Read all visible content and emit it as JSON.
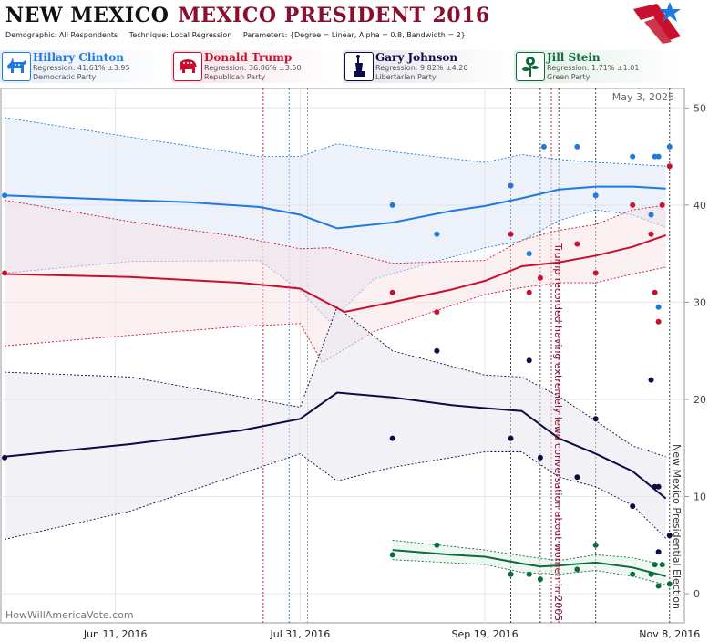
{
  "header": {
    "state": "NEW MEXICO",
    "race": "MEXICO PRESIDENT 2016",
    "demographic": "Demographic: All Respondents",
    "technique": "Technique: Local Regression",
    "parameters": "Parameters: {Degree = Linear, Alpha = 0.8, Bandwidth = 2}"
  },
  "candidates": [
    {
      "name": "Hillary Clinton",
      "regression": "Regression: 41.61% ±3.95",
      "party": "Democratic Party",
      "color": "#1f7ae0",
      "icon": "donkey-icon"
    },
    {
      "name": "Donald Trump",
      "regression": "Regression: 36.86% ±3.50",
      "party": "Republican Party",
      "color": "#c8102e",
      "icon": "elephant-icon"
    },
    {
      "name": "Gary Johnson",
      "regression": "Regression: 9.82% ±4.20",
      "party": "Libertarian Party",
      "color": "#0b0b45",
      "icon": "liberty-statue-icon"
    },
    {
      "name": "Jill Stein",
      "regression": "Regression: 1.71% ±1.01",
      "party": "Green Party",
      "color": "#0a6b3b",
      "icon": "flower-icon"
    }
  ],
  "chart_data": {
    "type": "line",
    "date_label": "May 3, 2025",
    "watermark": "HowWillAmericaVote.com",
    "xlim": [
      "2016-05-11",
      "2016-11-12"
    ],
    "ylim": [
      -3,
      52
    ],
    "y_ticks": [
      0,
      10,
      20,
      30,
      40,
      50
    ],
    "x_ticks": [
      {
        "date": "2016-06-11",
        "label": "Jun 11, 2016"
      },
      {
        "date": "2016-07-31",
        "label": "Jul 31, 2016"
      },
      {
        "date": "2016-09-19",
        "label": "Sep 19, 2016"
      },
      {
        "date": "2016-11-08",
        "label": "Nov 8, 2016"
      }
    ],
    "annotations": [
      {
        "date": "2016-10-07",
        "text": "Trump recorded having extremely lewd conversation about women in 2005",
        "color": "#8a0e2e"
      },
      {
        "date": "2016-11-08",
        "text": "New Mexico Presidential Election",
        "color": "#333333"
      }
    ],
    "event_lines": [
      {
        "date": "2016-07-21",
        "color": "#c8102e"
      },
      {
        "date": "2016-07-28",
        "color": "#1f7ae0"
      },
      {
        "date": "2016-08-02",
        "color": "#999999"
      },
      {
        "date": "2016-09-26",
        "color": "#333333"
      },
      {
        "date": "2016-10-04",
        "color": "#333333"
      },
      {
        "date": "2016-10-07",
        "color": "#c8102e"
      },
      {
        "date": "2016-10-09",
        "color": "#333333"
      },
      {
        "date": "2016-10-19",
        "color": "#333333"
      },
      {
        "date": "2016-11-08",
        "color": "#333333"
      }
    ],
    "series": [
      {
        "name": "Hillary Clinton",
        "color": "#1f7ae0",
        "band_color": "#dde6f5",
        "trend": [
          [
            "2016-05-12",
            41
          ],
          [
            "2016-06-01",
            40.7
          ],
          [
            "2016-07-01",
            40.3
          ],
          [
            "2016-07-20",
            39.8
          ],
          [
            "2016-07-31",
            39.0
          ],
          [
            "2016-08-10",
            37.6
          ],
          [
            "2016-08-25",
            38.2
          ],
          [
            "2016-09-10",
            39.4
          ],
          [
            "2016-09-19",
            39.9
          ],
          [
            "2016-09-29",
            40.7
          ],
          [
            "2016-10-09",
            41.6
          ],
          [
            "2016-10-19",
            41.9
          ],
          [
            "2016-10-29",
            41.9
          ],
          [
            "2016-11-07",
            41.7
          ]
        ],
        "upper": [
          [
            "2016-05-12",
            49.0
          ],
          [
            "2016-06-15",
            47.0
          ],
          [
            "2016-07-20",
            45.0
          ],
          [
            "2016-07-31",
            45.0
          ],
          [
            "2016-08-10",
            46.3
          ],
          [
            "2016-08-25",
            45.5
          ],
          [
            "2016-09-19",
            44.4
          ],
          [
            "2016-09-29",
            45.2
          ],
          [
            "2016-10-09",
            44.7
          ],
          [
            "2016-10-19",
            44.4
          ],
          [
            "2016-10-29",
            44.2
          ],
          [
            "2016-11-07",
            44.0
          ]
        ],
        "lower": [
          [
            "2016-05-12",
            33.0
          ],
          [
            "2016-06-15",
            34.2
          ],
          [
            "2016-07-20",
            34.3
          ],
          [
            "2016-07-31",
            31.2
          ],
          [
            "2016-08-08",
            28.0
          ],
          [
            "2016-08-20",
            32.4
          ],
          [
            "2016-09-19",
            35.6
          ],
          [
            "2016-09-29",
            36.3
          ],
          [
            "2016-10-09",
            38.4
          ],
          [
            "2016-10-19",
            39.5
          ],
          [
            "2016-10-29",
            39.0
          ],
          [
            "2016-11-07",
            37.7
          ]
        ],
        "points": [
          [
            "2016-05-12",
            41
          ],
          [
            "2016-08-25",
            40
          ],
          [
            "2016-09-06",
            37
          ],
          [
            "2016-09-26",
            42
          ],
          [
            "2016-10-01",
            35
          ],
          [
            "2016-10-05",
            46
          ],
          [
            "2016-10-14",
            46
          ],
          [
            "2016-10-19",
            41
          ],
          [
            "2016-10-29",
            45
          ],
          [
            "2016-11-03",
            39
          ],
          [
            "2016-11-04",
            45
          ],
          [
            "2016-11-05",
            45
          ],
          [
            "2016-11-05",
            29.5
          ],
          [
            "2016-11-08",
            46
          ]
        ]
      },
      {
        "name": "Donald Trump",
        "color": "#c8102e",
        "band_color": "#f6e1e6",
        "trend": [
          [
            "2016-05-12",
            32.9
          ],
          [
            "2016-06-15",
            32.6
          ],
          [
            "2016-07-15",
            32.0
          ],
          [
            "2016-07-31",
            31.4
          ],
          [
            "2016-08-12",
            29.0
          ],
          [
            "2016-08-25",
            30.0
          ],
          [
            "2016-09-10",
            31.3
          ],
          [
            "2016-09-19",
            32.2
          ],
          [
            "2016-09-29",
            33.7
          ],
          [
            "2016-10-09",
            34.1
          ],
          [
            "2016-10-19",
            34.8
          ],
          [
            "2016-10-29",
            35.7
          ],
          [
            "2016-11-07",
            36.9
          ]
        ],
        "upper": [
          [
            "2016-05-12",
            40.5
          ],
          [
            "2016-06-15",
            38.3
          ],
          [
            "2016-07-15",
            36.7
          ],
          [
            "2016-07-31",
            35.5
          ],
          [
            "2016-08-08",
            35.6
          ],
          [
            "2016-08-25",
            34.0
          ],
          [
            "2016-09-19",
            34.3
          ],
          [
            "2016-09-29",
            36.4
          ],
          [
            "2016-10-09",
            37.4
          ],
          [
            "2016-10-19",
            38.0
          ],
          [
            "2016-10-29",
            39.5
          ],
          [
            "2016-11-07",
            40.0
          ]
        ],
        "lower": [
          [
            "2016-05-12",
            25.5
          ],
          [
            "2016-06-15",
            26.6
          ],
          [
            "2016-07-15",
            27.5
          ],
          [
            "2016-07-31",
            27.8
          ],
          [
            "2016-08-06",
            23.8
          ],
          [
            "2016-08-20",
            27.0
          ],
          [
            "2016-09-19",
            30.8
          ],
          [
            "2016-09-29",
            31.5
          ],
          [
            "2016-10-09",
            32.0
          ],
          [
            "2016-10-19",
            32.0
          ],
          [
            "2016-10-29",
            32.9
          ],
          [
            "2016-11-07",
            33.6
          ]
        ],
        "points": [
          [
            "2016-05-12",
            33
          ],
          [
            "2016-08-25",
            31
          ],
          [
            "2016-09-06",
            29
          ],
          [
            "2016-09-26",
            37
          ],
          [
            "2016-10-01",
            31
          ],
          [
            "2016-10-04",
            32.5
          ],
          [
            "2016-10-14",
            36
          ],
          [
            "2016-10-19",
            33
          ],
          [
            "2016-10-29",
            40
          ],
          [
            "2016-11-03",
            37
          ],
          [
            "2016-11-04",
            31
          ],
          [
            "2016-11-05",
            28
          ],
          [
            "2016-11-06",
            40
          ],
          [
            "2016-11-08",
            44
          ]
        ]
      },
      {
        "name": "Gary Johnson",
        "color": "#0b0b45",
        "band_color": "#e7e7ee",
        "trend": [
          [
            "2016-05-12",
            14.1
          ],
          [
            "2016-06-15",
            15.4
          ],
          [
            "2016-07-15",
            16.8
          ],
          [
            "2016-07-31",
            18.0
          ],
          [
            "2016-08-10",
            20.7
          ],
          [
            "2016-08-25",
            20.2
          ],
          [
            "2016-09-10",
            19.4
          ],
          [
            "2016-09-19",
            19.1
          ],
          [
            "2016-09-29",
            18.8
          ],
          [
            "2016-10-09",
            16.0
          ],
          [
            "2016-10-19",
            14.4
          ],
          [
            "2016-10-29",
            12.6
          ],
          [
            "2016-11-07",
            9.8
          ]
        ],
        "upper": [
          [
            "2016-05-12",
            22.8
          ],
          [
            "2016-06-15",
            22.3
          ],
          [
            "2016-07-31",
            19.2
          ],
          [
            "2016-08-10",
            29.5
          ],
          [
            "2016-08-25",
            25.0
          ],
          [
            "2016-09-19",
            22.5
          ],
          [
            "2016-09-29",
            22.3
          ],
          [
            "2016-10-09",
            20.3
          ],
          [
            "2016-10-19",
            17.8
          ],
          [
            "2016-10-29",
            15.2
          ],
          [
            "2016-11-07",
            14.1
          ]
        ],
        "lower": [
          [
            "2016-05-12",
            5.6
          ],
          [
            "2016-06-15",
            8.5
          ],
          [
            "2016-07-31",
            14.4
          ],
          [
            "2016-08-10",
            11.6
          ],
          [
            "2016-08-25",
            13.0
          ],
          [
            "2016-09-19",
            14.6
          ],
          [
            "2016-09-29",
            14.6
          ],
          [
            "2016-10-09",
            12.0
          ],
          [
            "2016-10-19",
            11.0
          ],
          [
            "2016-10-29",
            9.1
          ],
          [
            "2016-11-07",
            5.7
          ]
        ],
        "points": [
          [
            "2016-05-12",
            14
          ],
          [
            "2016-08-25",
            16
          ],
          [
            "2016-09-06",
            25
          ],
          [
            "2016-09-26",
            16
          ],
          [
            "2016-10-01",
            24
          ],
          [
            "2016-10-04",
            14
          ],
          [
            "2016-10-14",
            12
          ],
          [
            "2016-10-19",
            18
          ],
          [
            "2016-10-29",
            9
          ],
          [
            "2016-11-03",
            22
          ],
          [
            "2016-11-04",
            11
          ],
          [
            "2016-11-05",
            11
          ],
          [
            "2016-11-05",
            4.3
          ],
          [
            "2016-11-08",
            6
          ]
        ]
      },
      {
        "name": "Jill Stein",
        "color": "#0a6b3b",
        "band_color": "#e2f0e7",
        "trend": [
          [
            "2016-08-25",
            4.5
          ],
          [
            "2016-09-10",
            4.0
          ],
          [
            "2016-09-19",
            3.8
          ],
          [
            "2016-09-29",
            3.1
          ],
          [
            "2016-10-04",
            2.8
          ],
          [
            "2016-10-09",
            2.9
          ],
          [
            "2016-10-19",
            3.2
          ],
          [
            "2016-10-29",
            2.7
          ],
          [
            "2016-11-07",
            1.8
          ]
        ],
        "upper": [
          [
            "2016-08-25",
            5.5
          ],
          [
            "2016-09-19",
            4.5
          ],
          [
            "2016-09-29",
            3.9
          ],
          [
            "2016-10-09",
            3.4
          ],
          [
            "2016-10-19",
            4.0
          ],
          [
            "2016-10-29",
            3.7
          ],
          [
            "2016-11-07",
            2.9
          ]
        ],
        "lower": [
          [
            "2016-08-25",
            3.5
          ],
          [
            "2016-09-19",
            3.0
          ],
          [
            "2016-09-29",
            2.2
          ],
          [
            "2016-10-09",
            2.0
          ],
          [
            "2016-10-19",
            2.4
          ],
          [
            "2016-10-29",
            1.8
          ],
          [
            "2016-11-07",
            0.9
          ]
        ],
        "points": [
          [
            "2016-08-25",
            4
          ],
          [
            "2016-09-06",
            5
          ],
          [
            "2016-09-26",
            2
          ],
          [
            "2016-10-01",
            2
          ],
          [
            "2016-10-04",
            1.5
          ],
          [
            "2016-10-14",
            2.5
          ],
          [
            "2016-10-19",
            5
          ],
          [
            "2016-10-29",
            2
          ],
          [
            "2016-11-03",
            2
          ],
          [
            "2016-11-04",
            3
          ],
          [
            "2016-11-05",
            0.8
          ],
          [
            "2016-11-06",
            3
          ],
          [
            "2016-11-08",
            1
          ]
        ]
      }
    ]
  }
}
